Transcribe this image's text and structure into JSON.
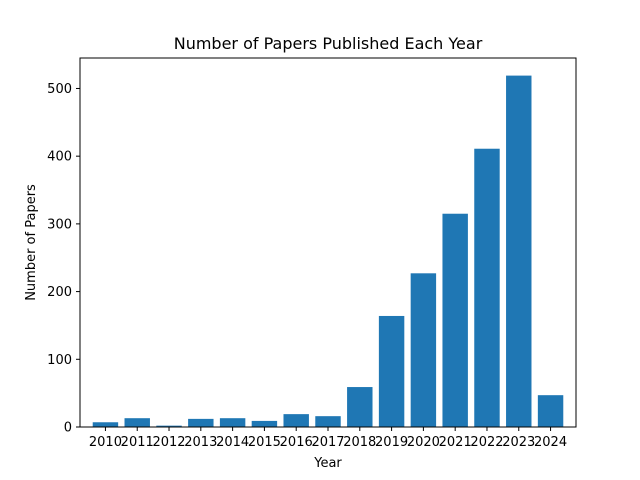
{
  "chart_data": {
    "type": "bar",
    "title": "Number of Papers Published Each Year",
    "xlabel": "Year",
    "ylabel": "Number of Papers",
    "categories": [
      "2010",
      "2011",
      "2012",
      "2013",
      "2014",
      "2015",
      "2016",
      "2017",
      "2018",
      "2019",
      "2020",
      "2021",
      "2022",
      "2023",
      "2024"
    ],
    "values": [
      7,
      13,
      2,
      12,
      13,
      9,
      19,
      16,
      59,
      164,
      227,
      315,
      411,
      519,
      47
    ],
    "ylim": [
      0,
      545
    ],
    "yticks": [
      0,
      100,
      200,
      300,
      400,
      500
    ],
    "grid": false,
    "legend": "none",
    "bar_color": "#1f77b4"
  }
}
